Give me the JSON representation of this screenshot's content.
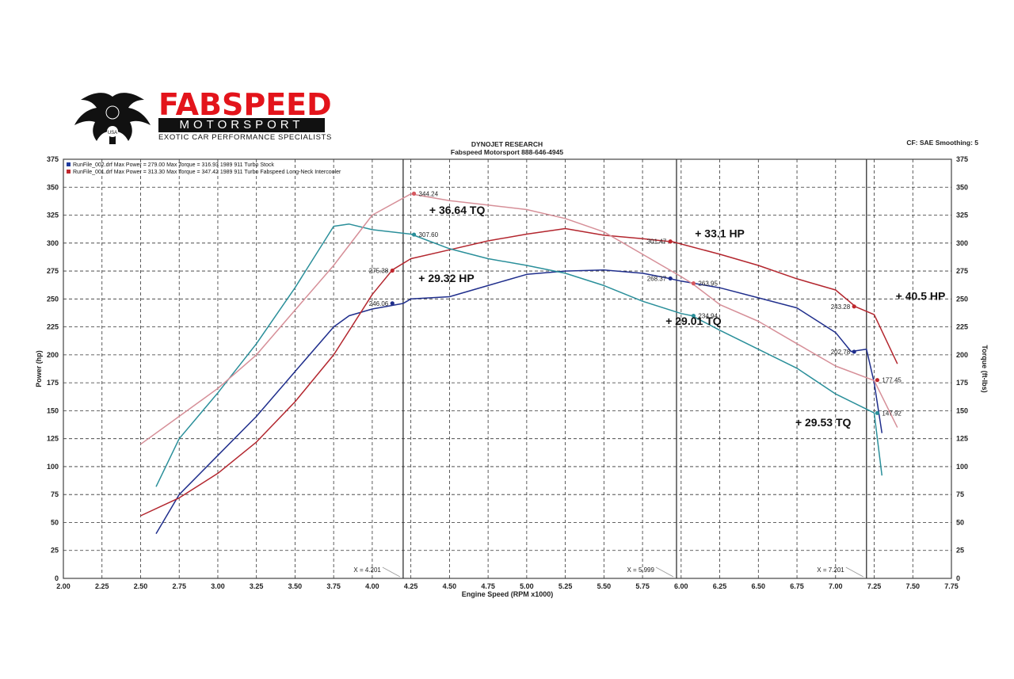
{
  "logo": {
    "name": "FABSPEED",
    "sub": "MOTORSPORT",
    "tagline": "EXOTIC CAR PERFORMANCE SPECIALISTS",
    "badge": "USA"
  },
  "header": {
    "title": "DYNOJET RESEARCH",
    "subtitle": "Fabspeed Motorsport 888-646-4945",
    "settings": "CF: SAE  Smoothing: 5"
  },
  "legend": [
    {
      "text": "RunFile_002.drf Max Power = 279.00     Max Torque = 316.93  1989 911 Turbo Stock",
      "color": "#1f3a9e"
    },
    {
      "text": "RunFile_001.drf Max Power = 313.30     Max Torque = 347.42  1989 911 Turbo Fabspeed Long-Neck Intercooler",
      "color": "#c0272d"
    }
  ],
  "annotations": [
    {
      "text": "+ 36.64 TQ",
      "x": 4.55,
      "y": 326
    },
    {
      "text": "+ 29.32 HP",
      "x": 4.48,
      "y": 265
    },
    {
      "text": "+ 33.1 HP",
      "x": 6.25,
      "y": 305
    },
    {
      "text": "+ 29.01 TQ",
      "x": 6.08,
      "y": 227
    },
    {
      "text": "+ 40.5 HP",
      "x": 7.55,
      "y": 249
    },
    {
      "text": "+ 29.53 TQ",
      "x": 6.92,
      "y": 136
    }
  ],
  "chart_data": {
    "type": "line",
    "xlabel": "Engine Speed (RPM x1000)",
    "ylabel": "Power (hp)",
    "y2label": "Torque (ft-lbs)",
    "xlim": [
      2.0,
      7.75
    ],
    "ylim": [
      0,
      375
    ],
    "x_ticks": [
      "2.00",
      "2.25",
      "2.50",
      "2.75",
      "3.00",
      "3.25",
      "3.50",
      "3.75",
      "4.00",
      "4.25",
      "4.50",
      "4.75",
      "5.00",
      "5.25",
      "5.50",
      "5.75",
      "6.00",
      "6.25",
      "6.50",
      "6.75",
      "7.00",
      "7.25",
      "7.50",
      "7.75"
    ],
    "y_ticks": [
      "0",
      "25",
      "50",
      "75",
      "100",
      "125",
      "150",
      "175",
      "200",
      "225",
      "250",
      "275",
      "300",
      "325",
      "350",
      "375"
    ],
    "grid": true,
    "markers": [
      {
        "x": 4.2,
        "label": "X = 4.201"
      },
      {
        "x": 5.97,
        "label": "X = 5.999"
      },
      {
        "x": 7.2,
        "label": "X = 7.201"
      }
    ],
    "series": [
      {
        "name": "Stock Power",
        "color": "#1f2e8c",
        "x": [
          2.6,
          2.75,
          3.0,
          3.25,
          3.5,
          3.75,
          3.85,
          4.0,
          4.2,
          4.25,
          4.5,
          4.75,
          5.0,
          5.25,
          5.5,
          5.75,
          5.9,
          6.0,
          6.25,
          6.5,
          6.75,
          7.0,
          7.1,
          7.2,
          7.25,
          7.3
        ],
        "values": [
          40,
          75,
          110,
          145,
          185,
          225,
          235,
          241,
          246,
          250,
          252,
          262,
          272,
          275,
          276,
          273,
          269,
          266,
          260,
          251,
          242,
          220,
          203,
          205,
          175,
          130
        ]
      },
      {
        "name": "Fabspeed Power",
        "color": "#b3262e",
        "x": [
          2.5,
          2.75,
          3.0,
          3.25,
          3.5,
          3.75,
          4.0,
          4.13,
          4.25,
          4.5,
          4.75,
          5.0,
          5.25,
          5.5,
          5.75,
          5.95,
          6.25,
          6.5,
          6.75,
          7.0,
          7.13,
          7.25,
          7.4
        ],
        "values": [
          56,
          72,
          94,
          122,
          158,
          200,
          254,
          276,
          286,
          294,
          302,
          308,
          313,
          307,
          304,
          301,
          290,
          280,
          268,
          258,
          243,
          236,
          192
        ]
      },
      {
        "name": "Stock Torque",
        "color": "#2a8f9a",
        "x": [
          2.6,
          2.75,
          3.0,
          3.25,
          3.5,
          3.75,
          3.85,
          4.0,
          4.25,
          4.5,
          4.75,
          5.0,
          5.25,
          5.5,
          5.75,
          6.0,
          6.07,
          6.25,
          6.5,
          6.75,
          7.0,
          7.25,
          7.3
        ],
        "values": [
          82,
          125,
          166,
          210,
          260,
          315,
          317,
          312,
          308,
          295,
          286,
          280,
          273,
          262,
          248,
          237,
          235,
          222,
          205,
          188,
          165,
          148,
          92
        ]
      },
      {
        "name": "Fabspeed Torque",
        "color": "#d68f98",
        "x": [
          2.5,
          2.75,
          3.0,
          3.25,
          3.5,
          3.75,
          4.0,
          4.25,
          4.5,
          5.0,
          5.25,
          5.5,
          5.75,
          6.0,
          6.07,
          6.25,
          6.5,
          6.75,
          7.0,
          7.25,
          7.4
        ],
        "values": [
          120,
          145,
          170,
          200,
          240,
          280,
          325,
          344,
          338,
          330,
          322,
          310,
          290,
          270,
          264,
          245,
          230,
          210,
          190,
          177,
          135
        ]
      }
    ],
    "point_labels": [
      {
        "x": 4.13,
        "y": 246.06,
        "label": "246.06",
        "color": "#1f2e8c",
        "side": "left"
      },
      {
        "x": 4.13,
        "y": 275.38,
        "label": "275.38",
        "color": "#c0272d",
        "side": "left"
      },
      {
        "x": 4.27,
        "y": 307.6,
        "label": "307.60",
        "color": "#2a8f9a",
        "side": "right"
      },
      {
        "x": 4.27,
        "y": 344.24,
        "label": "344.24",
        "color": "#d6585f",
        "side": "right"
      },
      {
        "x": 5.93,
        "y": 301.47,
        "label": "301.47",
        "color": "#c0272d",
        "side": "left"
      },
      {
        "x": 5.93,
        "y": 268.37,
        "label": "268.37",
        "color": "#1f2e8c",
        "side": "left"
      },
      {
        "x": 6.08,
        "y": 263.95,
        "label": "263.95",
        "color": "#d6585f",
        "side": "right"
      },
      {
        "x": 6.08,
        "y": 234.94,
        "label": "234.94",
        "color": "#2a8f9a",
        "side": "right"
      },
      {
        "x": 7.12,
        "y": 243.28,
        "label": "243.28",
        "color": "#c0272d",
        "side": "left"
      },
      {
        "x": 7.12,
        "y": 202.78,
        "label": "202.78",
        "color": "#1f2e8c",
        "side": "left"
      },
      {
        "x": 7.27,
        "y": 177.45,
        "label": "177.45",
        "color": "#c0272d",
        "side": "right"
      },
      {
        "x": 7.27,
        "y": 147.92,
        "label": "147.92",
        "color": "#2a8f9a",
        "side": "right"
      }
    ]
  }
}
